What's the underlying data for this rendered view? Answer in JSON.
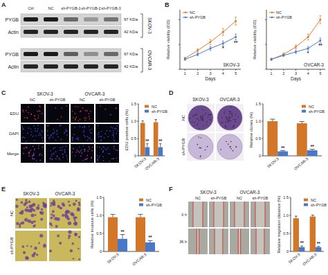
{
  "figure": {
    "panel_labels": [
      "A",
      "B",
      "C",
      "D",
      "E",
      "F"
    ],
    "blot": {
      "columns": [
        "Ctrl",
        "NC",
        "sh-PYGB-1",
        "sh-PYGB-2",
        "sh-PYGB-3"
      ],
      "groups": [
        {
          "cell": "SKOV-3",
          "rows": [
            {
              "protein": "PYGB",
              "size": "97 KDa",
              "levels": [
                0.95,
                0.95,
                0.55,
                0.3,
                0.5
              ]
            },
            {
              "protein": "Actin",
              "size": "42 KDa",
              "levels": [
                0.9,
                0.9,
                0.9,
                0.9,
                0.9
              ]
            }
          ]
        },
        {
          "cell": "OVCAR-3",
          "rows": [
            {
              "protein": "PYGB",
              "size": "97 KDa",
              "levels": [
                0.95,
                0.95,
                0.6,
                0.35,
                0.55
              ]
            },
            {
              "protein": "Actin",
              "size": "42 KDa",
              "levels": [
                0.9,
                0.9,
                0.9,
                0.9,
                0.9
              ]
            }
          ]
        }
      ]
    },
    "edu_images": {
      "groups": [
        "SKOV-3",
        "OVCAR-3"
      ],
      "columns": [
        "NC",
        "sh-PYGB",
        "NC",
        "sh-PYGB"
      ],
      "rows": [
        "EDU",
        "DAPI",
        "Merge"
      ]
    },
    "clone_images": {
      "columns": [
        "SKOV-3",
        "OVCAR-3"
      ],
      "rows": [
        "NC",
        "sh-PYGB"
      ]
    },
    "invasion_images": {
      "columns": [
        "SKOV-3",
        "OVCAR-3"
      ],
      "rows": [
        "NC",
        "sh-PYGB"
      ]
    },
    "wound_images": {
      "groups": [
        "SKOV-3",
        "OVCAR-3"
      ],
      "columns": [
        "NC",
        "sh-PYGB",
        "NC",
        "sh-PYGB"
      ],
      "rows": [
        "0 h",
        "36 h"
      ]
    }
  },
  "chart_data": [
    {
      "type": "line",
      "title": "SKOV-3",
      "x_label": "Days",
      "y_label": "Relative viability (OD)",
      "x": [
        1,
        2,
        3,
        4,
        5
      ],
      "xlim": [
        0.6,
        5.4
      ],
      "xticks": [
        1,
        2,
        3,
        4,
        5
      ],
      "ylim": [
        0,
        1.2
      ],
      "yticks": [
        0,
        0.5,
        1
      ],
      "tick_labels": "x",
      "legend": "upper left",
      "series": [
        {
          "name": "NC",
          "color": "#e07a2c",
          "values": [
            0.22,
            0.38,
            0.55,
            0.75,
            0.97
          ],
          "errors": [
            0.02,
            0.03,
            0.05,
            0.07,
            0.08
          ]
        },
        {
          "name": "sh-PYGB",
          "color": "#4a78c8",
          "values": [
            0.2,
            0.3,
            0.42,
            0.52,
            0.65
          ],
          "errors": [
            0.02,
            0.03,
            0.04,
            0.05,
            0.06
          ],
          "significance": [
            null,
            null,
            null,
            "*",
            "**"
          ]
        }
      ]
    },
    {
      "type": "line",
      "title": "OVCAR-3",
      "x_label": "Days",
      "y_label": "Relative viability (OD)",
      "x": [
        1,
        2,
        3,
        4,
        5
      ],
      "xlim": [
        0.6,
        5.4
      ],
      "xticks": [
        1,
        2,
        3,
        4,
        5
      ],
      "ylim": [
        0,
        1.2
      ],
      "yticks": [
        0,
        0.5,
        1
      ],
      "tick_labels": "x",
      "legend": "upper left",
      "series": [
        {
          "name": "NC",
          "color": "#e07a2c",
          "values": [
            0.2,
            0.3,
            0.45,
            0.65,
            1.0
          ],
          "errors": [
            0.02,
            0.03,
            0.04,
            0.06,
            0.08
          ]
        },
        {
          "name": "sh-PYGB",
          "color": "#4a78c8",
          "values": [
            0.2,
            0.28,
            0.35,
            0.42,
            0.58
          ],
          "errors": [
            0.02,
            0.02,
            0.03,
            0.04,
            0.05
          ],
          "significance": [
            null,
            null,
            null,
            "*",
            "**"
          ]
        }
      ]
    },
    {
      "type": "bar",
      "y_label": "EDU positive cells (%)",
      "categories": [
        "SKOV-3",
        "OVCAR-3"
      ],
      "ylim": [
        0,
        1.5
      ],
      "yticks": [
        0,
        0.5,
        {
          "value": 1,
          "label": "1.0"
        },
        1.5
      ],
      "legend": "upper right",
      "series": [
        {
          "name": "NC",
          "color": "#d2762a",
          "values": [
            0.95,
            0.97
          ],
          "errors": [
            0.06,
            0.08
          ]
        },
        {
          "name": "sh-PYGB",
          "color": "#4a78c8",
          "values": [
            0.25,
            0.25
          ],
          "errors": [
            0.1,
            0.1
          ],
          "significance": [
            "**",
            "**"
          ]
        }
      ]
    },
    {
      "type": "bar",
      "y_label": "Relative clones (%)",
      "categories": [
        "SKOV-3",
        "OVCAR-3"
      ],
      "ylim": [
        0,
        1.5
      ],
      "yticks": [
        0,
        0.5,
        {
          "value": 1,
          "label": "1.0"
        },
        1.5
      ],
      "legend": "upper right",
      "series": [
        {
          "name": "NC",
          "color": "#d2762a",
          "values": [
            1.0,
            0.94
          ],
          "errors": [
            0.06,
            0.05
          ]
        },
        {
          "name": "sh-PYGB",
          "color": "#4a78c8",
          "values": [
            0.13,
            0.16
          ],
          "errors": [
            0.02,
            0.03
          ],
          "significance": [
            "**",
            "**"
          ]
        }
      ]
    },
    {
      "type": "bar",
      "y_label": "Relative invasive cells (%)",
      "categories": [
        "SKOV-3",
        "OVCAR-3"
      ],
      "ylim": [
        0,
        1.5
      ],
      "yticks": [
        0,
        0.5,
        {
          "value": 1,
          "label": "1.0"
        },
        1.5
      ],
      "legend": "upper right",
      "series": [
        {
          "name": "NC",
          "color": "#d2762a",
          "values": [
            0.95,
            0.95
          ],
          "errors": [
            0.08,
            0.08
          ]
        },
        {
          "name": "sh-PYGB",
          "color": "#4a78c8",
          "values": [
            0.35,
            0.25
          ],
          "errors": [
            0.12,
            0.05
          ],
          "significance": [
            "**",
            "**"
          ]
        }
      ]
    },
    {
      "type": "bar",
      "y_label": "Relative migration distance (%)",
      "categories": [
        "SKOV-3",
        "OVCAR-3"
      ],
      "ylim": [
        0,
        1.5
      ],
      "yticks": [
        0,
        0.5,
        {
          "value": 1,
          "label": "1.0"
        },
        1.5
      ],
      "legend": "upper right",
      "series": [
        {
          "name": "NC",
          "color": "#d2762a",
          "values": [
            0.92,
            0.97
          ],
          "errors": [
            0.06,
            0.04
          ]
        },
        {
          "name": "sh-PYGB",
          "color": "#4a78c8",
          "values": [
            0.12,
            0.12
          ],
          "errors": [
            0.03,
            0.02
          ],
          "significance": [
            "**",
            "**"
          ]
        }
      ]
    }
  ]
}
